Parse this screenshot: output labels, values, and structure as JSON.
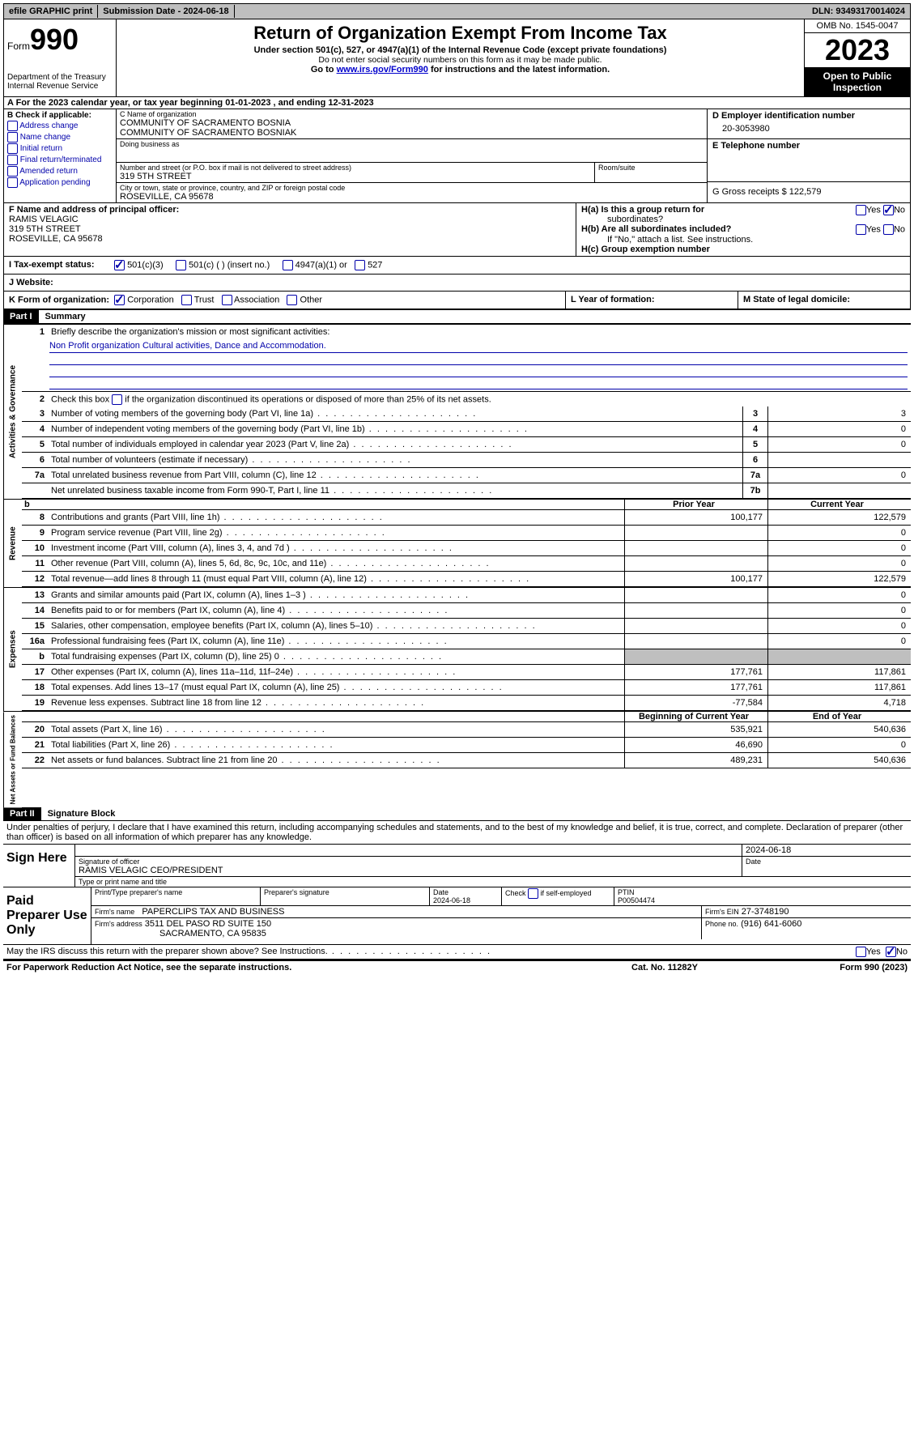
{
  "topbar": {
    "efile": "efile GRAPHIC print",
    "submission": "Submission Date - 2024-06-18",
    "dln": "DLN: 93493170014024"
  },
  "header": {
    "form_label": "Form",
    "form_num": "990",
    "dept": "Department of the Treasury",
    "irs": "Internal Revenue Service",
    "title": "Return of Organization Exempt From Income Tax",
    "sub1": "Under section 501(c), 527, or 4947(a)(1) of the Internal Revenue Code (except private foundations)",
    "sub2": "Do not enter social security numbers on this form as it may be made public.",
    "sub3_pre": "Go to ",
    "sub3_link": "www.irs.gov/Form990",
    "sub3_post": " for instructions and the latest information.",
    "omb": "OMB No. 1545-0047",
    "year": "2023",
    "open": "Open to Public Inspection"
  },
  "line_a": {
    "text": "A For the 2023 calendar year, or tax year beginning 01-01-2023     , and ending 12-31-2023"
  },
  "section_b": {
    "title": "B Check if applicable:",
    "opts": [
      "Address change",
      "Name change",
      "Initial return",
      "Final return/terminated",
      "Amended return",
      "Application pending"
    ]
  },
  "section_c": {
    "name_label": "C Name of organization",
    "name1": "COMMUNITY OF SACRAMENTO BOSNIA",
    "name2": "COMMUNITY OF SACRAMENTO BOSNIAK",
    "dba_label": "Doing business as",
    "addr_label": "Number and street (or P.O. box if mail is not delivered to street address)",
    "addr": "319 5TH STREET",
    "room_label": "Room/suite",
    "city_label": "City or town, state or province, country, and ZIP or foreign postal code",
    "city": "ROSEVILLE, CA  95678"
  },
  "section_d": {
    "label": "D Employer identification number",
    "value": "20-3053980",
    "e_label": "E Telephone number",
    "g_label": "G Gross receipts $ 122,579"
  },
  "section_f": {
    "label": "F  Name and address of principal officer:",
    "name": "RAMIS VELAGIC",
    "addr": "319 5TH STREET",
    "city": "ROSEVILLE, CA  95678"
  },
  "section_h": {
    "ha": "H(a)  Is this a group return for",
    "ha2": "subordinates?",
    "hb": "H(b)  Are all subordinates included?",
    "hb2": "If \"No,\" attach a list. See instructions.",
    "hc": "H(c)  Group exemption number",
    "yes": "Yes",
    "no": "No"
  },
  "section_i": {
    "label": "I   Tax-exempt status:",
    "o1": "501(c)(3)",
    "o2": "501(c) (  ) (insert no.)",
    "o3": "4947(a)(1) or",
    "o4": "527"
  },
  "section_j": {
    "label": "J   Website:"
  },
  "section_k": {
    "label": "K Form of organization:",
    "o1": "Corporation",
    "o2": "Trust",
    "o3": "Association",
    "o4": "Other",
    "l_label": "L Year of formation:",
    "m_label": "M State of legal domicile:"
  },
  "part1": {
    "header": "Part I",
    "title": "Summary",
    "line1": "Briefly describe the organization's mission or most significant activities:",
    "mission": "Non Profit organization Cultural activities, Dance and Accommodation.",
    "line2": "Check this box        if the organization discontinued its operations or disposed of more than 25% of its net assets.",
    "vlabels": {
      "gov": "Activities & Governance",
      "rev": "Revenue",
      "exp": "Expenses",
      "net": "Net Assets or Fund Balances"
    },
    "gov_lines": [
      {
        "n": "3",
        "d": "Number of voting members of the governing body (Part VI, line 1a)",
        "box": "3",
        "v": "3"
      },
      {
        "n": "4",
        "d": "Number of independent voting members of the governing body (Part VI, line 1b)",
        "box": "4",
        "v": "0"
      },
      {
        "n": "5",
        "d": "Total number of individuals employed in calendar year 2023 (Part V, line 2a)",
        "box": "5",
        "v": "0"
      },
      {
        "n": "6",
        "d": "Total number of volunteers (estimate if necessary)",
        "box": "6",
        "v": ""
      },
      {
        "n": "7a",
        "d": "Total unrelated business revenue from Part VIII, column (C), line 12",
        "box": "7a",
        "v": "0"
      },
      {
        "n": "",
        "d": "Net unrelated business taxable income from Form 990-T, Part I, line 11",
        "box": "7b",
        "v": ""
      }
    ],
    "col_headers": {
      "prior": "Prior Year",
      "current": "Current Year",
      "begin": "Beginning of Current Year",
      "end": "End of Year"
    },
    "rev_lines": [
      {
        "n": "8",
        "d": "Contributions and grants (Part VIII, line 1h)",
        "p": "100,177",
        "c": "122,579"
      },
      {
        "n": "9",
        "d": "Program service revenue (Part VIII, line 2g)",
        "p": "",
        "c": "0"
      },
      {
        "n": "10",
        "d": "Investment income (Part VIII, column (A), lines 3, 4, and 7d )",
        "p": "",
        "c": "0"
      },
      {
        "n": "11",
        "d": "Other revenue (Part VIII, column (A), lines 5, 6d, 8c, 9c, 10c, and 11e)",
        "p": "",
        "c": "0"
      },
      {
        "n": "12",
        "d": "Total revenue—add lines 8 through 11 (must equal Part VIII, column (A), line 12)",
        "p": "100,177",
        "c": "122,579"
      }
    ],
    "exp_lines": [
      {
        "n": "13",
        "d": "Grants and similar amounts paid (Part IX, column (A), lines 1–3 )",
        "p": "",
        "c": "0"
      },
      {
        "n": "14",
        "d": "Benefits paid to or for members (Part IX, column (A), line 4)",
        "p": "",
        "c": "0"
      },
      {
        "n": "15",
        "d": "Salaries, other compensation, employee benefits (Part IX, column (A), lines 5–10)",
        "p": "",
        "c": "0"
      },
      {
        "n": "16a",
        "d": "Professional fundraising fees (Part IX, column (A), line 11e)",
        "p": "",
        "c": "0"
      },
      {
        "n": "b",
        "d": "Total fundraising expenses (Part IX, column (D), line 25) 0",
        "p": "SHADE",
        "c": "SHADE"
      },
      {
        "n": "17",
        "d": "Other expenses (Part IX, column (A), lines 11a–11d, 11f–24e)",
        "p": "177,761",
        "c": "117,861"
      },
      {
        "n": "18",
        "d": "Total expenses. Add lines 13–17 (must equal Part IX, column (A), line 25)",
        "p": "177,761",
        "c": "117,861"
      },
      {
        "n": "19",
        "d": "Revenue less expenses. Subtract line 18 from line 12",
        "p": "-77,584",
        "c": "4,718"
      }
    ],
    "net_lines": [
      {
        "n": "20",
        "d": "Total assets (Part X, line 16)",
        "p": "535,921",
        "c": "540,636"
      },
      {
        "n": "21",
        "d": "Total liabilities (Part X, line 26)",
        "p": "46,690",
        "c": "0"
      },
      {
        "n": "22",
        "d": "Net assets or fund balances. Subtract line 21 from line 20",
        "p": "489,231",
        "c": "540,636"
      }
    ]
  },
  "part2": {
    "header": "Part II",
    "title": "Signature Block",
    "declaration": "Under penalties of perjury, I declare that I have examined this return, including accompanying schedules and statements, and to the best of my knowledge and belief, it is true, correct, and complete. Declaration of preparer (other than officer) is based on all information of which preparer has any knowledge."
  },
  "sign": {
    "here": "Sign Here",
    "date": "2024-06-18",
    "sig_label": "Signature of officer",
    "officer": "RAMIS VELAGIC  CEO/PRESIDENT",
    "name_label": "Type or print name and title",
    "date_label": "Date"
  },
  "preparer": {
    "label": "Paid Preparer Use Only",
    "name_label": "Print/Type preparer's name",
    "sig_label": "Preparer's signature",
    "date_label": "Date",
    "date": "2024-06-18",
    "check_label": "Check         if self-employed",
    "ptin_label": "PTIN",
    "ptin": "P00504474",
    "firm_name_label": "Firm's name",
    "firm_name": "PAPERCLIPS TAX AND BUSINESS",
    "firm_ein_label": "Firm's EIN",
    "firm_ein": "27-3748190",
    "firm_addr_label": "Firm's address",
    "firm_addr1": "3511 DEL PASO RD SUITE 150",
    "firm_addr2": "SACRAMENTO, CA  95835",
    "phone_label": "Phone no.",
    "phone": "(916) 641-6060"
  },
  "footer": {
    "discuss": "May the IRS discuss this return with the preparer shown above? See Instructions.",
    "paperwork": "For Paperwork Reduction Act Notice, see the separate instructions.",
    "cat": "Cat. No. 11282Y",
    "form": "Form 990 (2023)",
    "yes": "Yes",
    "no": "No"
  }
}
